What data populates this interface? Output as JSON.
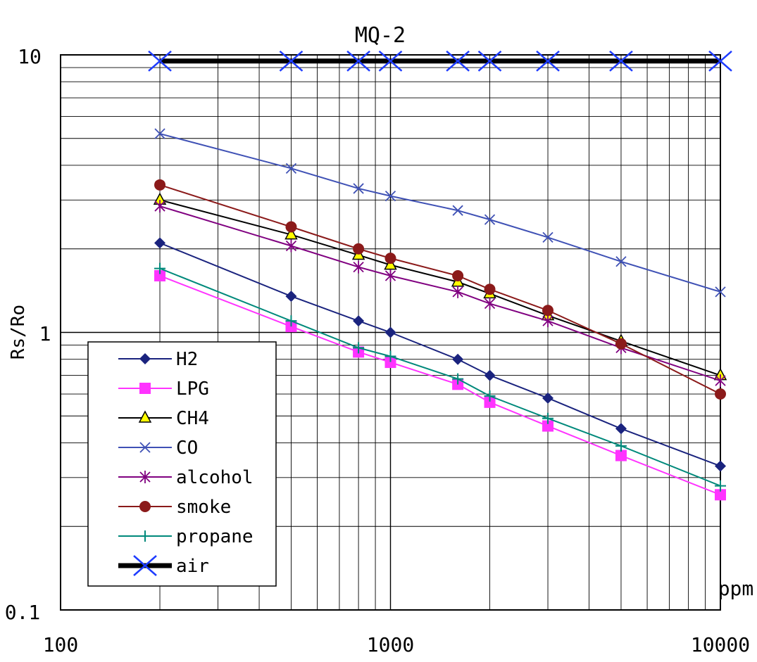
{
  "chart_data": {
    "type": "line",
    "title": "MQ-2",
    "xlabel": "",
    "ylabel": "Rs/Ro",
    "x_unit": "ppm",
    "x_scale": "log",
    "y_scale": "log",
    "xlim": [
      100,
      10000
    ],
    "ylim": [
      0.1,
      10
    ],
    "x_ticks": [
      "100",
      "1000",
      "10000"
    ],
    "y_ticks": [
      "0.1",
      "1",
      "10"
    ],
    "grid": true,
    "legend_position": "bottom-left",
    "x": [
      200,
      500,
      800,
      1000,
      1600,
      2000,
      3000,
      5000,
      10000
    ],
    "series": [
      {
        "name": "H2",
        "color": "#1a237e",
        "marker": "diamond",
        "values": [
          2.1,
          1.35,
          1.1,
          1.0,
          0.8,
          0.7,
          0.58,
          0.45,
          0.33
        ]
      },
      {
        "name": "LPG",
        "color": "#ff33ff",
        "marker": "square",
        "values": [
          1.6,
          1.05,
          0.85,
          0.78,
          0.65,
          0.56,
          0.46,
          0.36,
          0.26
        ]
      },
      {
        "name": "CH4",
        "color": "#000000",
        "marker": "triangle",
        "values": [
          3.0,
          2.25,
          1.9,
          1.75,
          1.52,
          1.38,
          1.15,
          0.93,
          0.7
        ]
      },
      {
        "name": "CO",
        "color": "#3f51b5",
        "marker": "x",
        "values": [
          5.2,
          3.9,
          3.3,
          3.1,
          2.75,
          2.55,
          2.2,
          1.8,
          1.4
        ]
      },
      {
        "name": "alcohol",
        "color": "#800080",
        "marker": "asterisk",
        "values": [
          2.85,
          2.05,
          1.72,
          1.6,
          1.4,
          1.27,
          1.1,
          0.88,
          0.67
        ]
      },
      {
        "name": "smoke",
        "color": "#8b1a1a",
        "marker": "circle",
        "values": [
          3.4,
          2.4,
          2.0,
          1.85,
          1.6,
          1.43,
          1.2,
          0.91,
          0.6
        ]
      },
      {
        "name": "propane",
        "color": "#00897b",
        "marker": "plus",
        "values": [
          1.7,
          1.1,
          0.88,
          0.82,
          0.68,
          0.59,
          0.49,
          0.39,
          0.28
        ]
      },
      {
        "name": "air",
        "color": "#000000",
        "marker": "bigx",
        "values": [
          9.5,
          9.5,
          9.5,
          9.5,
          9.5,
          9.5,
          9.5,
          9.5,
          9.5
        ]
      }
    ]
  }
}
